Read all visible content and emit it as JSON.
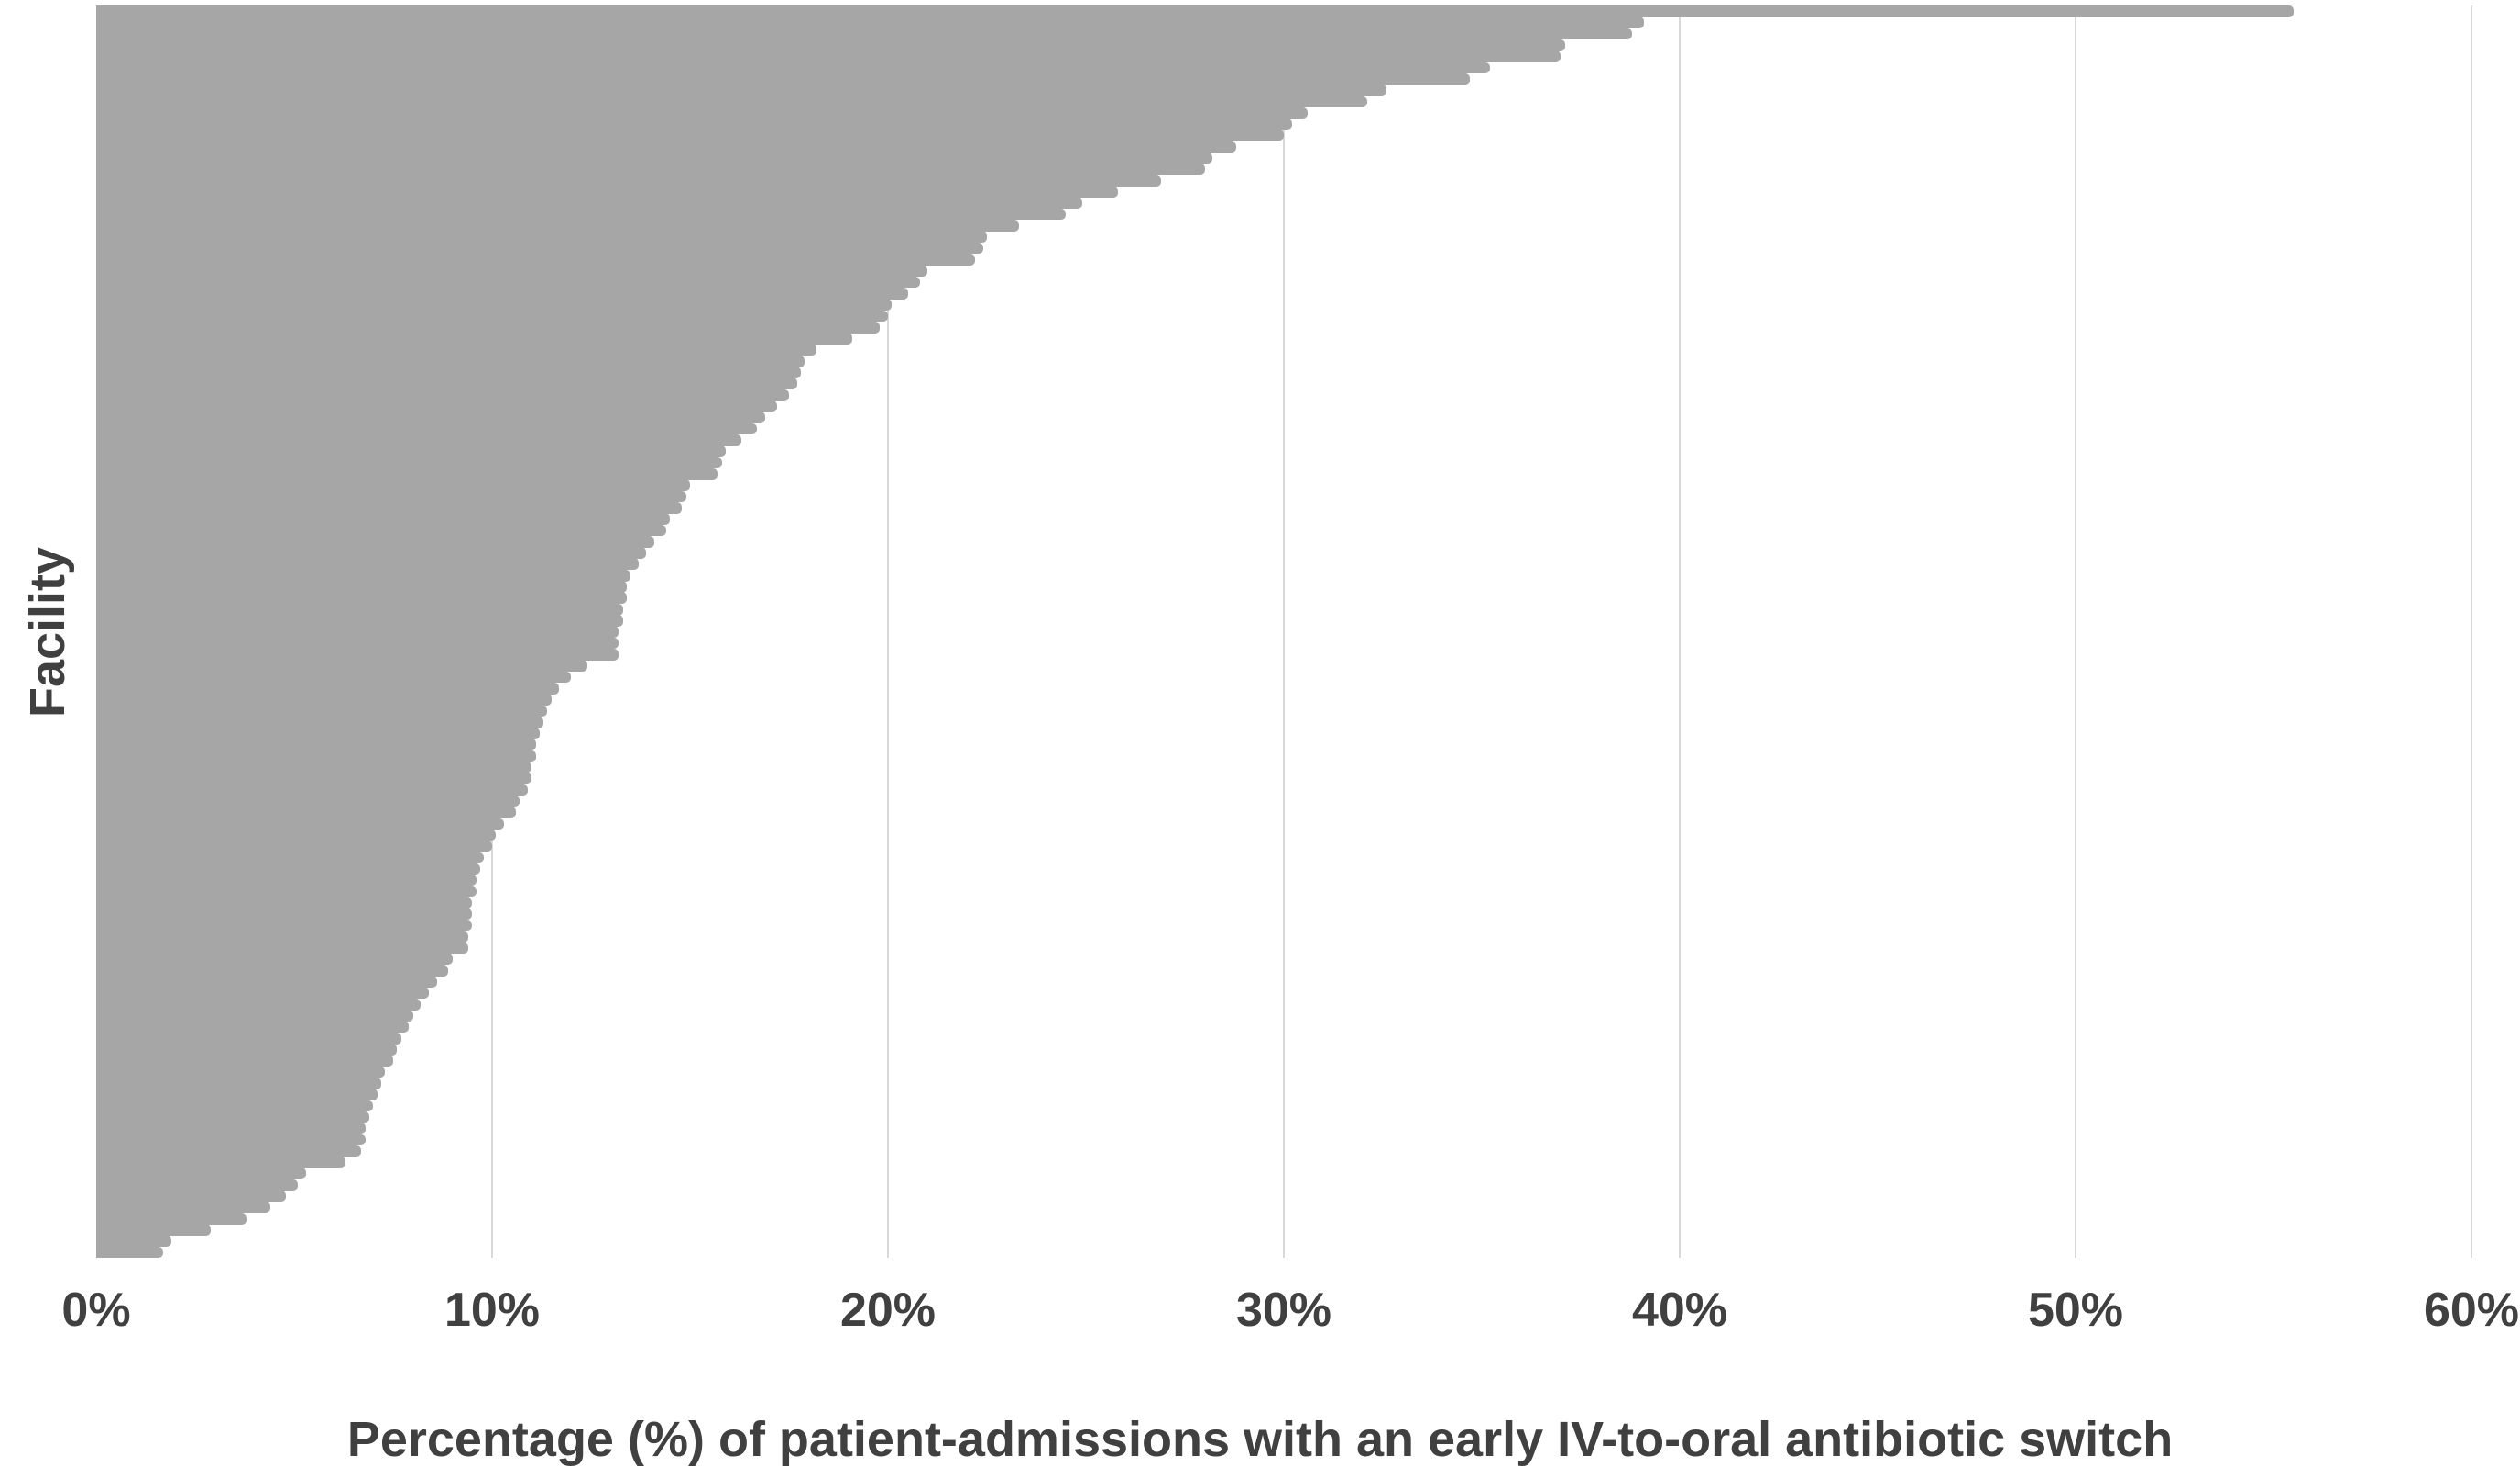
{
  "chart_data": {
    "type": "bar",
    "orientation": "horizontal",
    "title": "",
    "xlabel": "Percentage (%) of patient-admissions with an early IV-to-oral antibiotic switch",
    "ylabel": "Facility",
    "x_ticks": [
      "0%",
      "10%",
      "20%",
      "30%",
      "40%",
      "50%",
      "60%"
    ],
    "xlim": [
      0,
      60
    ],
    "grid": "vertical-only",
    "legend": "none",
    "n_facilities": 111,
    "bar_color": "#A6A6A6",
    "gridline_color": "#D9D9D9",
    "text_color": "#404040",
    "values": [
      55.5,
      39.1,
      38.8,
      37.1,
      37.0,
      35.2,
      34.7,
      32.6,
      32.1,
      30.6,
      30.2,
      30.0,
      28.8,
      28.2,
      28.0,
      26.9,
      25.8,
      24.9,
      24.5,
      23.3,
      22.5,
      22.4,
      22.2,
      21.0,
      20.8,
      20.5,
      20.1,
      20.0,
      19.8,
      19.1,
      18.2,
      17.9,
      17.8,
      17.7,
      17.5,
      17.2,
      16.9,
      16.7,
      16.3,
      15.9,
      15.8,
      15.7,
      15.0,
      14.9,
      14.8,
      14.5,
      14.4,
      14.1,
      13.9,
      13.7,
      13.5,
      13.4,
      13.4,
      13.3,
      13.3,
      13.2,
      13.2,
      13.2,
      12.4,
      12.0,
      11.7,
      11.5,
      11.4,
      11.3,
      11.2,
      11.1,
      11.1,
      11.0,
      11.0,
      10.9,
      10.7,
      10.6,
      10.3,
      10.1,
      10.0,
      9.8,
      9.7,
      9.6,
      9.6,
      9.5,
      9.5,
      9.5,
      9.4,
      9.4,
      9.0,
      8.9,
      8.6,
      8.4,
      8.2,
      8.0,
      7.9,
      7.7,
      7.6,
      7.5,
      7.3,
      7.2,
      7.1,
      7.0,
      6.9,
      6.8,
      6.8,
      6.7,
      6.3,
      5.3,
      5.1,
      4.8,
      4.4,
      3.8,
      2.9,
      1.9,
      1.7
    ]
  }
}
